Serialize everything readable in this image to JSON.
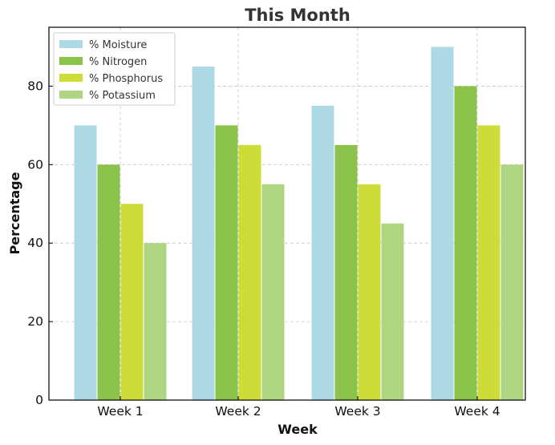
{
  "chart_data": {
    "type": "bar",
    "title": "This Month",
    "xlabel": "Week",
    "ylabel": "Percentage",
    "categories": [
      "Week 1",
      "Week 2",
      "Week 3",
      "Week 4"
    ],
    "series": [
      {
        "name": "% Moisture",
        "values": [
          70,
          85,
          75,
          90
        ],
        "color": "#add8e6"
      },
      {
        "name": "% Nitrogen",
        "values": [
          60,
          70,
          65,
          80
        ],
        "color": "#8bc34a"
      },
      {
        "name": "% Phosphorus",
        "values": [
          50,
          65,
          55,
          70
        ],
        "color": "#cddc39"
      },
      {
        "name": "% Potassium",
        "values": [
          40,
          55,
          45,
          60
        ],
        "color": "#aed581"
      }
    ],
    "ylim": [
      0,
      95
    ],
    "yticks": [
      0,
      20,
      40,
      60,
      80
    ],
    "grid": true,
    "legend_position": "top-left"
  }
}
